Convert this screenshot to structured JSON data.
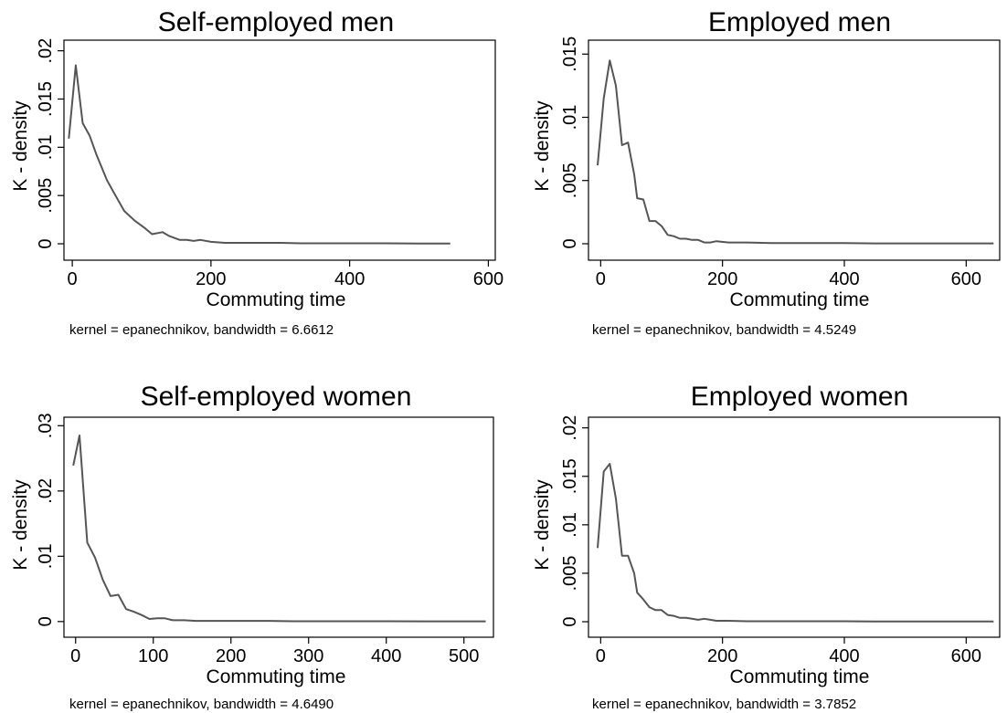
{
  "chart_data": [
    {
      "type": "line",
      "title": "Self-employed men",
      "xlabel": "Commuting time",
      "ylabel": "K - density",
      "note": "kernel = epanechnikov, bandwidth = 6.6612",
      "xlim": [
        -12,
        610
      ],
      "ylim": [
        -0.0017,
        0.0211
      ],
      "xticks": [
        0,
        200,
        400,
        600
      ],
      "xtick_labels": [
        "0",
        "200",
        "400",
        "600"
      ],
      "yticks": [
        0,
        0.005,
        0.01,
        0.015,
        0.02
      ],
      "ytick_labels": [
        "0",
        ".005",
        ".01",
        ".015",
        ".02"
      ],
      "x": [
        -5,
        5,
        15,
        25,
        35,
        50,
        60,
        75,
        90,
        105,
        115,
        130,
        140,
        155,
        165,
        175,
        185,
        200,
        220,
        250,
        280,
        300,
        330,
        360,
        400,
        450,
        500,
        545
      ],
      "y": [
        0.0109,
        0.0185,
        0.0125,
        0.0112,
        0.0092,
        0.0066,
        0.0053,
        0.0034,
        0.0024,
        0.0016,
        0.001,
        0.0012,
        0.0008,
        0.0004,
        0.0004,
        0.0003,
        0.0004,
        0.0002,
        0.0001,
        0.0001,
        0.0001,
        0.0001,
        5e-05,
        5e-05,
        5e-05,
        5e-05,
        3e-05,
        3e-05
      ]
    },
    {
      "type": "line",
      "title": "Employed men",
      "xlabel": "Commuting time",
      "ylabel": "K - density",
      "note": "kernel = epanechnikov, bandwidth = 4.5249",
      "xlim": [
        -20,
        655
      ],
      "ylim": [
        -0.0013,
        0.0161
      ],
      "xticks": [
        0,
        200,
        400,
        600
      ],
      "xtick_labels": [
        "0",
        "200",
        "400",
        "600"
      ],
      "yticks": [
        0,
        0.005,
        0.01,
        0.015
      ],
      "ytick_labels": [
        "0",
        ".005",
        ".01",
        ".015"
      ],
      "x": [
        -5,
        5,
        15,
        25,
        35,
        45,
        55,
        60,
        70,
        80,
        90,
        100,
        110,
        120,
        130,
        140,
        150,
        160,
        170,
        180,
        190,
        210,
        240,
        280,
        320,
        360,
        400,
        450,
        500,
        550,
        600,
        645
      ],
      "y": [
        0.0062,
        0.0115,
        0.0145,
        0.0125,
        0.0078,
        0.008,
        0.0055,
        0.0036,
        0.0035,
        0.0018,
        0.0018,
        0.0014,
        0.0007,
        0.0006,
        0.0004,
        0.0004,
        0.0003,
        0.0003,
        0.0001,
        0.0001,
        0.0002,
        0.0001,
        0.0001,
        5e-05,
        5e-05,
        5e-05,
        5e-05,
        3e-05,
        3e-05,
        3e-05,
        3e-05,
        3e-05
      ]
    },
    {
      "type": "line",
      "title": "Self-employed women",
      "xlabel": "Commuting time",
      "ylabel": "K - density",
      "note": "kernel = epanechnikov, bandwidth = 4.6490",
      "xlim": [
        -15,
        538
      ],
      "ylim": [
        -0.0024,
        0.0313
      ],
      "xticks": [
        0,
        100,
        200,
        300,
        400,
        500
      ],
      "xtick_labels": [
        "0",
        "100",
        "200",
        "300",
        "400",
        "500"
      ],
      "yticks": [
        0,
        0.01,
        0.02,
        0.03
      ],
      "ytick_labels": [
        "0",
        ".01",
        ".02",
        ".03"
      ],
      "x": [
        -3,
        5,
        15,
        25,
        35,
        45,
        55,
        65,
        75,
        85,
        95,
        105,
        115,
        125,
        140,
        155,
        170,
        185,
        200,
        220,
        250,
        280,
        310,
        350,
        400,
        450,
        500,
        528
      ],
      "y": [
        0.0239,
        0.0285,
        0.0121,
        0.0098,
        0.0064,
        0.0039,
        0.0041,
        0.0019,
        0.0015,
        0.001,
        0.0004,
        0.0005,
        0.0005,
        0.0002,
        0.0002,
        0.0001,
        0.0001,
        0.0001,
        0.0001,
        0.0001,
        0.0001,
        5e-05,
        5e-05,
        5e-05,
        5e-05,
        3e-05,
        3e-05,
        3e-05
      ]
    },
    {
      "type": "line",
      "title": "Employed women",
      "xlabel": "Commuting time",
      "ylabel": "K - density",
      "note": "kernel = epanechnikov, bandwidth = 3.7852",
      "xlim": [
        -20,
        655
      ],
      "ylim": [
        -0.0016,
        0.0211
      ],
      "xticks": [
        0,
        200,
        400,
        600
      ],
      "xtick_labels": [
        "0",
        "200",
        "400",
        "600"
      ],
      "yticks": [
        0,
        0.005,
        0.01,
        0.015,
        0.02
      ],
      "ytick_labels": [
        "0",
        ".005",
        ".01",
        ".015",
        ".02"
      ],
      "x": [
        -5,
        5,
        15,
        25,
        35,
        45,
        55,
        60,
        70,
        80,
        90,
        100,
        110,
        120,
        130,
        140,
        150,
        160,
        170,
        180,
        190,
        210,
        240,
        280,
        320,
        360,
        400,
        450,
        500,
        550,
        600,
        645
      ],
      "y": [
        0.0076,
        0.0155,
        0.0163,
        0.0127,
        0.0068,
        0.0068,
        0.005,
        0.003,
        0.0023,
        0.0015,
        0.0012,
        0.0012,
        0.0007,
        0.0006,
        0.0004,
        0.0004,
        0.0003,
        0.0002,
        0.0003,
        0.0002,
        0.0001,
        0.0001,
        5e-05,
        5e-05,
        5e-05,
        5e-05,
        5e-05,
        3e-05,
        3e-05,
        3e-05,
        3e-05,
        3e-05
      ]
    }
  ]
}
